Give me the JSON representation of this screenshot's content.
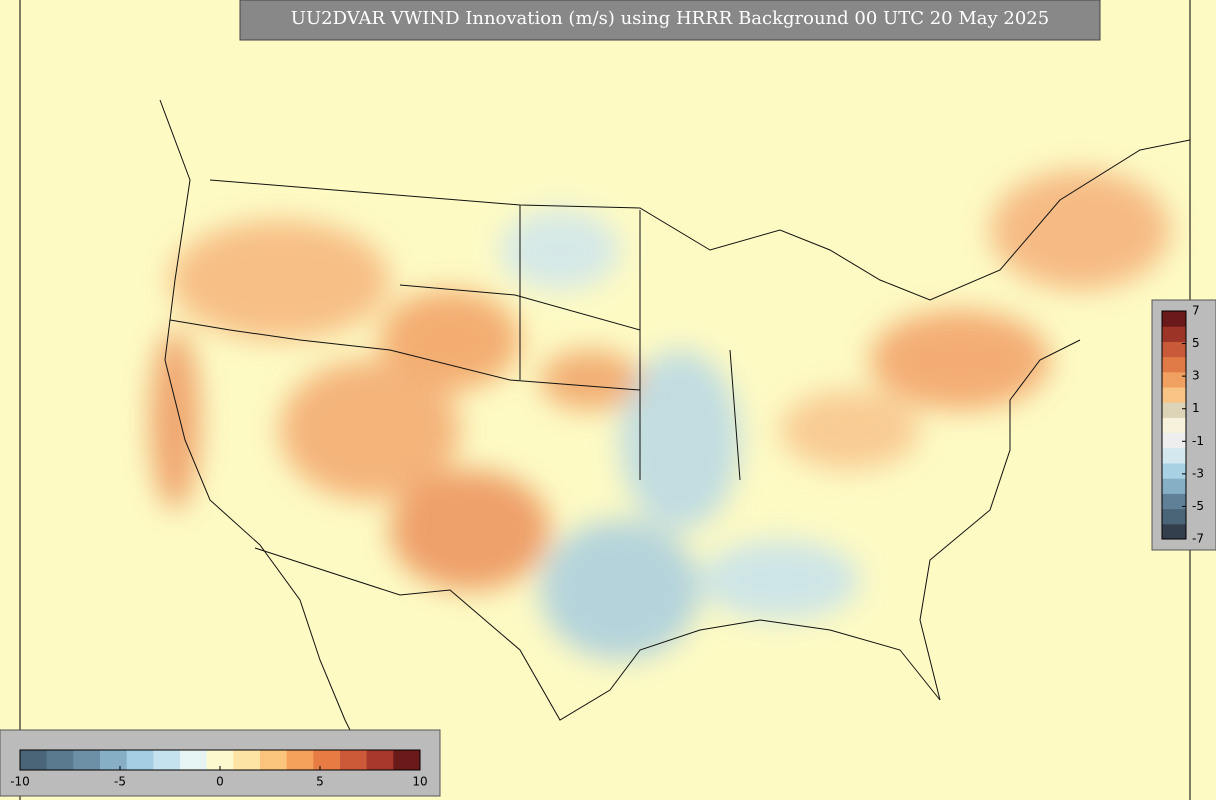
{
  "title": "UU2DVAR VWIND Innovation (m/s) using HRRR Background 00 UTC 20 May 2025",
  "colorbars": [
    {
      "orientation": "horizontal",
      "lim": [
        -10,
        10
      ],
      "ticks": [
        -10,
        -5,
        0,
        5,
        10
      ],
      "colors": [
        "#4a6478",
        "#5a7a90",
        "#6d90a6",
        "#86aec4",
        "#a3cde3",
        "#c5e3ef",
        "#e6f4f4",
        "#fdf9cf",
        "#fde3a4",
        "#fbc47c",
        "#f5a05a",
        "#e67b44",
        "#cc5937",
        "#a6372a",
        "#6a1a1a"
      ]
    },
    {
      "orientation": "vertical",
      "lim": [
        -7,
        7
      ],
      "ticks": [
        7,
        5,
        3,
        1,
        -1,
        -3,
        -5,
        -7
      ],
      "colors": [
        "#333f4c",
        "#4a6478",
        "#5f8096",
        "#86aec4",
        "#a9d1e4",
        "#d4e9ef",
        "#eeeeee",
        "#f6f2dc",
        "#ddd4b8",
        "#f8c486",
        "#f0a060",
        "#e07a46",
        "#c85a3a",
        "#9c3428",
        "#6a1a1a"
      ]
    }
  ]
}
